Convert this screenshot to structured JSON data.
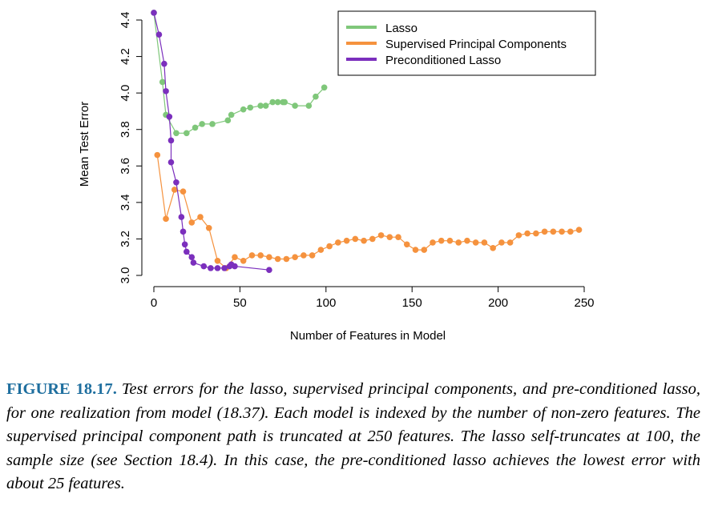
{
  "chart_data": {
    "type": "line",
    "xlabel": "Number of Features in Model",
    "ylabel": "Mean Test Error",
    "xlim": [
      0,
      250
    ],
    "ylim": [
      3.0,
      4.4
    ],
    "xticks": [
      0,
      50,
      100,
      150,
      200,
      250
    ],
    "yticks": [
      3.0,
      3.2,
      3.4,
      3.6,
      3.8,
      4.0,
      4.2,
      4.4
    ],
    "xtick_labels": [
      "0",
      "50",
      "100",
      "150",
      "200",
      "250"
    ],
    "ytick_labels": [
      "3.0",
      "3.2",
      "3.4",
      "3.6",
      "3.8",
      "4.0",
      "4.2",
      "4.4"
    ],
    "grid": false,
    "legend_position": "top-right",
    "series": [
      {
        "name": "Lasso",
        "color": "#7fc77a",
        "x": [
          0,
          5,
          7,
          13,
          19,
          24,
          28,
          34,
          43,
          45,
          52,
          56,
          62,
          65,
          69,
          72,
          75,
          76,
          82,
          90,
          94,
          99
        ],
        "y": [
          4.44,
          4.06,
          3.88,
          3.78,
          3.78,
          3.81,
          3.83,
          3.83,
          3.85,
          3.88,
          3.91,
          3.92,
          3.93,
          3.93,
          3.95,
          3.95,
          3.95,
          3.95,
          3.93,
          3.93,
          3.98,
          4.03
        ]
      },
      {
        "name": "Supervised Principal Components",
        "color": "#f5923e",
        "x": [
          2,
          7,
          12,
          17,
          22,
          27,
          32,
          37,
          42,
          47,
          52,
          57,
          62,
          67,
          72,
          77,
          82,
          87,
          92,
          97,
          102,
          107,
          112,
          117,
          122,
          127,
          132,
          137,
          142,
          147,
          152,
          157,
          162,
          167,
          172,
          177,
          182,
          187,
          192,
          197,
          202,
          207,
          212,
          217,
          222,
          227,
          232,
          237,
          242,
          247
        ],
        "y": [
          3.66,
          3.31,
          3.47,
          3.46,
          3.29,
          3.32,
          3.26,
          3.08,
          3.04,
          3.1,
          3.08,
          3.11,
          3.11,
          3.1,
          3.09,
          3.09,
          3.1,
          3.11,
          3.11,
          3.14,
          3.16,
          3.18,
          3.19,
          3.2,
          3.19,
          3.2,
          3.22,
          3.21,
          3.21,
          3.17,
          3.14,
          3.14,
          3.18,
          3.19,
          3.19,
          3.18,
          3.19,
          3.18,
          3.18,
          3.15,
          3.18,
          3.18,
          3.22,
          3.23,
          3.23,
          3.24,
          3.24,
          3.24,
          3.24,
          3.25
        ]
      },
      {
        "name": "Preconditioned Lasso",
        "color": "#7b2fbd",
        "x": [
          0,
          3,
          6,
          7,
          9,
          10,
          10,
          13,
          16,
          17,
          18,
          19,
          22,
          23,
          29,
          33,
          37,
          41,
          44,
          45,
          47,
          67
        ],
        "y": [
          4.44,
          4.32,
          4.16,
          4.01,
          3.87,
          3.74,
          3.62,
          3.51,
          3.32,
          3.24,
          3.17,
          3.13,
          3.1,
          3.07,
          3.05,
          3.04,
          3.04,
          3.04,
          3.05,
          3.06,
          3.05,
          3.03
        ]
      }
    ]
  },
  "caption": {
    "label": "FIGURE 18.17.",
    "text": "Test errors for the lasso, supervised principal components, and pre-conditioned lasso, for one realization from model (18.37). Each model is indexed by the number of non-zero features. The supervised principal component path is truncated at 250 features. The lasso self-truncates at 100, the sample size (see Section 18.4). In this case, the pre-conditioned lasso achieves the lowest error with about 25 features."
  }
}
